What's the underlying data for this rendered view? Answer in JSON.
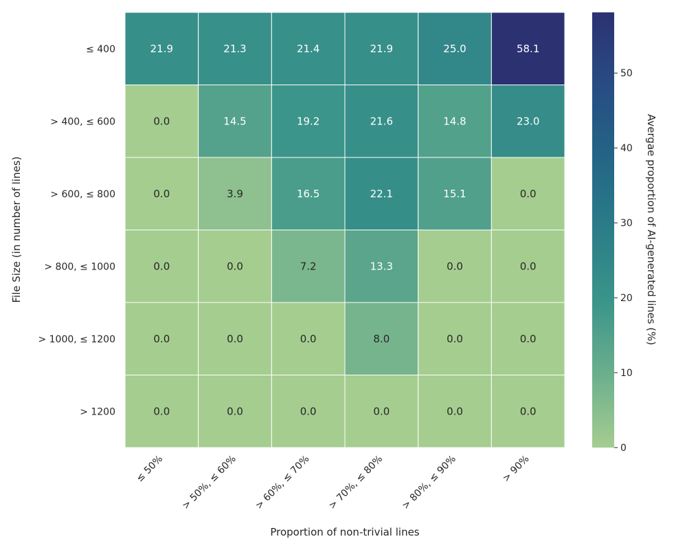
{
  "chart_data": {
    "type": "heatmap",
    "title": "",
    "xlabel": "Proportion of non-trivial lines",
    "ylabel": "File Size (in number of lines)",
    "x_categories": [
      "≤  50%",
      "> 50%,  ≤ 60%",
      "> 60%,  ≤ 70%",
      "> 70%,  ≤ 80%",
      "> 80%,  ≤ 90%",
      "> 90%"
    ],
    "y_categories": [
      "≤  400",
      "> 400,  ≤  600",
      "> 600,  ≤  800",
      "> 800,  ≤  1000",
      "> 1000,  ≤  1200",
      "> 1200"
    ],
    "values": [
      [
        21.9,
        21.3,
        21.4,
        21.9,
        25.0,
        58.1
      ],
      [
        0.0,
        14.5,
        19.2,
        21.6,
        14.8,
        23.0
      ],
      [
        0.0,
        3.9,
        16.5,
        22.1,
        15.1,
        0.0
      ],
      [
        0.0,
        0.0,
        7.2,
        13.3,
        0.0,
        0.0
      ],
      [
        0.0,
        0.0,
        0.0,
        8.0,
        0.0,
        0.0
      ],
      [
        0.0,
        0.0,
        0.0,
        0.0,
        0.0,
        0.0
      ]
    ],
    "value_format": "1 decimal",
    "colorbar": {
      "label": "Avergae proportion of AI-generated lines (%)",
      "range": [
        0,
        58.1
      ],
      "ticks": [
        0,
        10,
        20,
        30,
        40,
        50
      ],
      "colormap": "crest",
      "color_stops": [
        "#a5cd90",
        "#6caf8d",
        "#3b958a",
        "#2b7d88",
        "#236586",
        "#284c83",
        "#2c3172"
      ]
    },
    "grid": false,
    "legend": "colorbar-right"
  }
}
